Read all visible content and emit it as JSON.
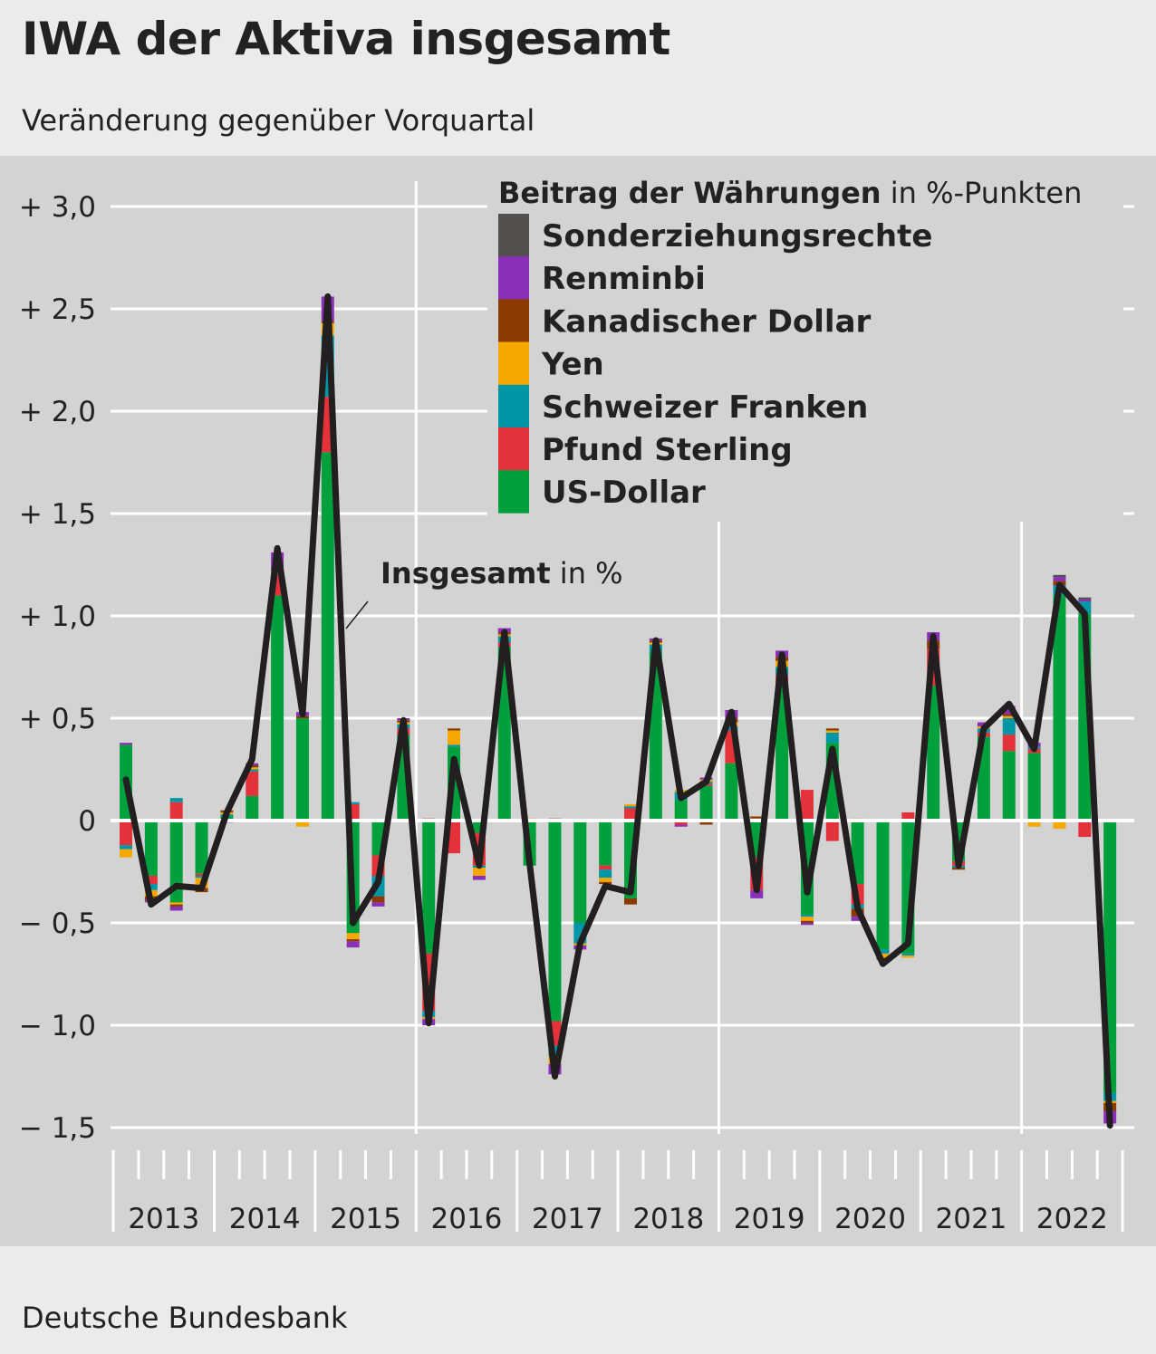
{
  "header": {
    "title": "IWA der Aktiva insgesamt",
    "subtitle": "Veränderung gegenüber Vorquartal"
  },
  "footer": {
    "source": "Deutsche Bundesbank"
  },
  "colors": {
    "plot_background": "#d3d3d3",
    "page_background": "#ebebeb",
    "grid": "#ffffff",
    "total_line": "#231f20",
    "Sonderziehungsrechte": "#54504d",
    "Renminbi": "#8a2fb7",
    "Kanadischer Dollar": "#8b3a00",
    "Yen": "#f6a800",
    "Schweizer Franken": "#0096a6",
    "Pfund Sterling": "#e3323a",
    "US-Dollar": "#00a03c"
  },
  "chart_data": {
    "type": "bar",
    "stacked": true,
    "ylim": [
      -1.5,
      3.0
    ],
    "yticks": [
      {
        "value": 3.0,
        "label": "+ 3,0"
      },
      {
        "value": 2.5,
        "label": "+ 2,5"
      },
      {
        "value": 2.0,
        "label": "+ 2,0"
      },
      {
        "value": 1.5,
        "label": "+ 1,5"
      },
      {
        "value": 1.0,
        "label": "+ 1,0"
      },
      {
        "value": 0.5,
        "label": "+ 0,5"
      },
      {
        "value": 0,
        "label": "0"
      },
      {
        "value": -0.5,
        "label": "− 0,5"
      },
      {
        "value": -1.0,
        "label": "− 1,0"
      },
      {
        "value": -1.5,
        "label": "− 1,5"
      }
    ],
    "years": [
      "2013",
      "2014",
      "2015",
      "2016",
      "2017",
      "2018",
      "2019",
      "2020",
      "2021",
      "2022"
    ],
    "legend": {
      "title_bold": "Beitrag der Währungen",
      "title_rest": "in %-Punkten",
      "placement": "top-right"
    },
    "total_label": {
      "bold": "Insgesamt",
      "rest": "in %"
    },
    "series": [
      {
        "name": "US-Dollar",
        "values": [
          0.37,
          -0.27,
          -0.4,
          -0.26,
          0.02,
          0.12,
          1.1,
          0.5,
          1.8,
          -0.55,
          -0.17,
          0.42,
          -0.65,
          0.36,
          -0.06,
          0.85,
          -0.22,
          -0.98,
          -0.5,
          -0.22,
          -0.38,
          0.83,
          0.1,
          0.17,
          0.28,
          -0.18,
          0.67,
          -0.46,
          0.38,
          -0.31,
          -0.63,
          -0.65,
          0.66,
          -0.2,
          0.41,
          0.34,
          0.33,
          1.1,
          1.01,
          -1.33
        ]
      },
      {
        "name": "Pfund Sterling",
        "values": [
          -0.12,
          -0.04,
          0.09,
          -0.01,
          0.0,
          0.12,
          0.1,
          0.0,
          0.27,
          0.08,
          -0.1,
          0.03,
          -0.28,
          -0.16,
          -0.16,
          0.02,
          0.0,
          -0.12,
          0.0,
          -0.02,
          0.06,
          0.0,
          -0.02,
          0.01,
          0.16,
          -0.16,
          0.04,
          0.15,
          -0.1,
          -0.1,
          0.0,
          0.04,
          0.18,
          -0.02,
          0.02,
          0.08,
          0.02,
          0.0,
          -0.08,
          0.0
        ]
      },
      {
        "name": "Schweizer Franken",
        "values": [
          -0.02,
          -0.03,
          0.02,
          -0.01,
          0.01,
          0.01,
          0.01,
          0.0,
          0.3,
          0.01,
          -0.1,
          0.02,
          -0.03,
          0.01,
          -0.01,
          0.03,
          0.0,
          -0.05,
          -0.1,
          -0.04,
          0.01,
          0.03,
          0.04,
          0.01,
          0.02,
          0.0,
          0.04,
          -0.01,
          0.05,
          -0.02,
          -0.02,
          -0.01,
          0.0,
          -0.01,
          0.02,
          0.08,
          0.01,
          0.05,
          0.06,
          -0.04
        ]
      },
      {
        "name": "Yen",
        "values": [
          -0.04,
          -0.03,
          -0.01,
          -0.05,
          0.01,
          0.01,
          0.01,
          -0.03,
          0.06,
          -0.03,
          0.0,
          0.01,
          -0.01,
          0.07,
          -0.04,
          0.01,
          0.01,
          -0.04,
          -0.01,
          -0.02,
          0.01,
          0.01,
          0.01,
          0.01,
          0.02,
          0.01,
          0.03,
          -0.02,
          0.01,
          0.01,
          -0.02,
          -0.01,
          0.0,
          0.0,
          0.01,
          0.01,
          -0.03,
          -0.04,
          0.0,
          -0.01
        ]
      },
      {
        "name": "Kanadischer Dollar",
        "values": [
          0.0,
          -0.02,
          -0.01,
          -0.02,
          0.01,
          0.01,
          0.01,
          0.01,
          0.01,
          -0.01,
          -0.03,
          0.01,
          0.01,
          0.01,
          0.0,
          0.01,
          0.0,
          0.01,
          0.0,
          -0.01,
          -0.03,
          0.01,
          0.0,
          -0.02,
          0.02,
          0.01,
          0.02,
          -0.01,
          0.01,
          -0.04,
          -0.01,
          0.0,
          0.04,
          -0.01,
          0.0,
          0.01,
          0.0,
          0.02,
          0.0,
          -0.04
        ]
      },
      {
        "name": "Renminbi",
        "values": [
          0.01,
          -0.01,
          -0.02,
          0.0,
          -0.01,
          0.01,
          0.08,
          0.02,
          0.12,
          -0.03,
          -0.02,
          0.01,
          -0.03,
          0.0,
          -0.02,
          0.02,
          0.0,
          -0.05,
          -0.02,
          0.0,
          0.0,
          0.01,
          -0.01,
          0.01,
          0.04,
          -0.04,
          0.03,
          -0.01,
          0.0,
          -0.02,
          0.0,
          0.0,
          0.04,
          0.0,
          0.02,
          0.04,
          0.02,
          0.02,
          0.01,
          -0.06
        ]
      },
      {
        "name": "Sonderziehungsrechte",
        "values": [
          0.0,
          0.0,
          0.0,
          0.0,
          0.0,
          0.0,
          0.0,
          0.0,
          0.0,
          0.0,
          0.0,
          0.0,
          0.0,
          0.0,
          0.0,
          0.0,
          0.0,
          0.0,
          0.0,
          0.0,
          0.0,
          0.0,
          0.0,
          0.0,
          0.0,
          0.0,
          0.0,
          0.0,
          0.0,
          0.0,
          0.0,
          0.0,
          0.0,
          0.0,
          0.0,
          0.0,
          0.0,
          0.01,
          0.01,
          0.0
        ]
      }
    ],
    "total": [
      0.2,
      -0.41,
      -0.32,
      -0.33,
      0.04,
      0.3,
      1.33,
      0.52,
      2.56,
      -0.5,
      -0.3,
      0.49,
      -0.99,
      0.3,
      -0.22,
      0.92,
      -0.21,
      -1.25,
      -0.6,
      -0.32,
      -0.35,
      0.88,
      0.11,
      0.19,
      0.53,
      -0.34,
      0.81,
      -0.35,
      0.35,
      -0.43,
      -0.7,
      -0.6,
      0.9,
      -0.22,
      0.45,
      0.57,
      0.35,
      1.15,
      1.01,
      -1.49
    ]
  }
}
